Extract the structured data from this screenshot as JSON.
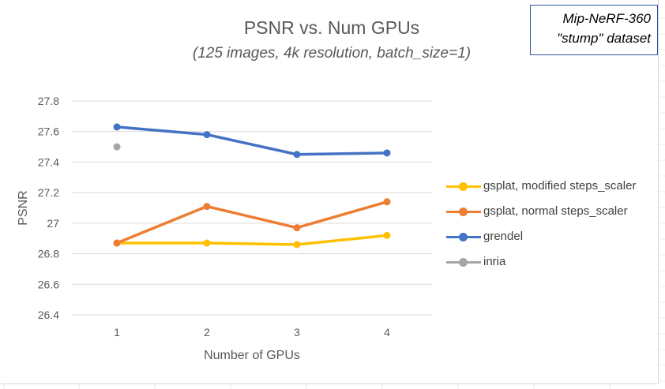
{
  "chart_data": {
    "type": "line",
    "title": "PSNR vs. Num GPUs",
    "subtitle": "(125 images, 4k resolution, batch_size=1)",
    "xlabel": "Number of GPUs",
    "ylabel": "PSNR",
    "categories": [
      "1",
      "2",
      "3",
      "4"
    ],
    "ylim": [
      26.4,
      27.8
    ],
    "yticks": [
      "26.4",
      "26.6",
      "26.8",
      "27",
      "27.2",
      "27.4",
      "27.6",
      "27.8"
    ],
    "grid": true,
    "legend_position": "right",
    "series": [
      {
        "name": "gsplat, modified steps_scaler",
        "color": "#ffc000",
        "values": [
          26.87,
          26.87,
          26.86,
          26.92
        ]
      },
      {
        "name": "gsplat, normal steps_scaler",
        "color": "#ed7d31",
        "values": [
          26.87,
          27.11,
          26.97,
          27.14
        ]
      },
      {
        "name": "grendel",
        "color": "#4472c4",
        "values": [
          27.63,
          27.58,
          27.45,
          27.46
        ]
      },
      {
        "name": "inria",
        "color": "#a5a5a5",
        "values": [
          27.5,
          null,
          null,
          null
        ]
      }
    ]
  },
  "annotation": {
    "line1": "Mip-NeRF-360",
    "line2": "\"stump\" dataset"
  }
}
